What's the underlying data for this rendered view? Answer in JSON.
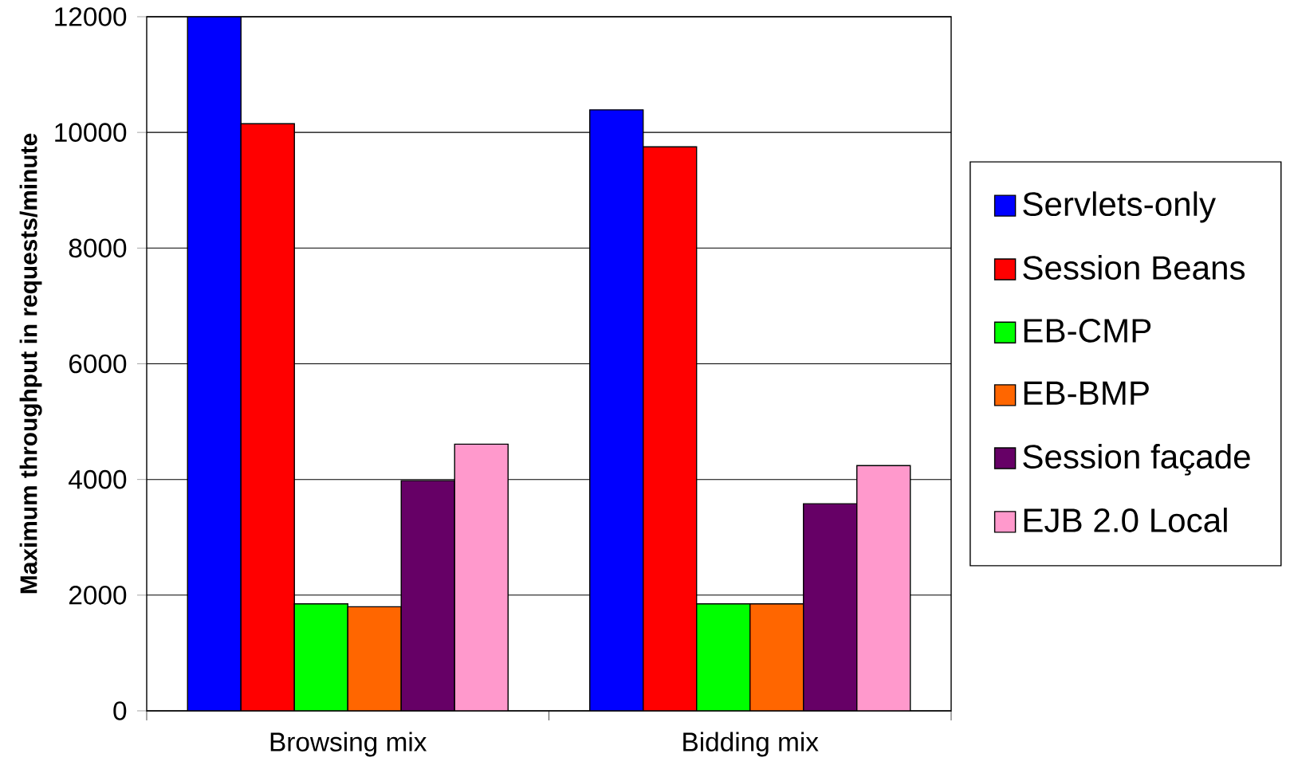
{
  "chart_data": {
    "type": "bar",
    "ylabel": "Maximum throughput in requests/minute",
    "categories": [
      "Browsing mix",
      "Bidding mix"
    ],
    "series": [
      {
        "name": "Servlets-only",
        "color": "#0000ff",
        "values": [
          12000,
          10390
        ]
      },
      {
        "name": "Session Beans",
        "color": "#ff0000",
        "values": [
          10150,
          9750
        ]
      },
      {
        "name": "EB-CMP",
        "color": "#00ff00",
        "values": [
          1850,
          1850
        ]
      },
      {
        "name": "EB-BMP",
        "color": "#ff6600",
        "values": [
          1800,
          1850
        ]
      },
      {
        "name": "Session façade",
        "color": "#660066",
        "values": [
          3980,
          3580
        ]
      },
      {
        "name": "EJB 2.0 Local",
        "color": "#ff99cc",
        "values": [
          4610,
          4240
        ]
      }
    ],
    "ylim": [
      0,
      12000
    ],
    "yticks": [
      0,
      2000,
      4000,
      6000,
      8000,
      10000,
      12000
    ],
    "grid": "y",
    "legend": "right"
  }
}
